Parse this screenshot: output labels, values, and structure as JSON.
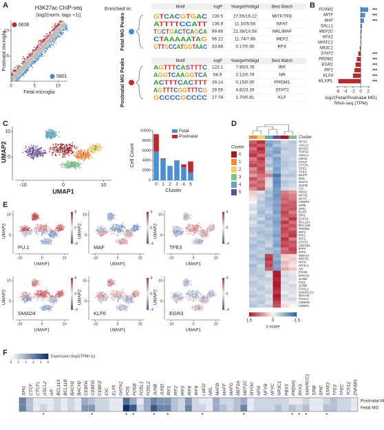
{
  "panel_a": {
    "label": "A",
    "title": "H3K27ac ChIP-seq",
    "subtitle": "(log2(norm. tags +1))",
    "x_label": "Fetal microglia",
    "y_label": "Postnatal microglia",
    "xlim": [
      0,
      12
    ],
    "ylim": [
      0,
      12
    ],
    "xticks": [
      0,
      5,
      10
    ],
    "yticks": [
      5,
      10
    ],
    "count_postnatal": 6636,
    "count_fetal": 5801,
    "color_postnatal": "#c0282c",
    "color_fetal": "#3b8fd0",
    "enriched_label": "Enriched in:",
    "table": {
      "header": [
        "Motif",
        "-logP",
        "%target/%bkgd",
        "Best Match"
      ],
      "groups": [
        {
          "name": "Fetal MG Peaks",
          "color": "#3b8fd0",
          "rows": [
            [
              "GTCACGTGAC",
              "239.5",
              "27.55/16.22",
              "MITF/TFE"
            ],
            [
              "ATTTTCCATT",
              "136.9",
              "11.10/5.56",
              "NFAT"
            ],
            [
              "TGCTGACTCAGCA",
              "99.66",
              "21.38/14.58",
              "NRL/MAF"
            ],
            [
              "CTAAAAATAG",
              "56.22",
              "11.74/7.86",
              "MEF2"
            ],
            [
              "GTTGCCATGGTAAC",
              "33.88",
              "0.17/0.00",
              "RFX"
            ]
          ]
        },
        {
          "name": "Postnatal MG Peaks",
          "color": "#c0282c",
          "rows": [
            [
              "AGTTTCASTTTC",
              "122.1",
              "7.90/3.78",
              "IRF"
            ],
            [
              "AGGTCAAGGTCA",
              "54.9",
              "2.12/0.79",
              "NR"
            ],
            [
              "ACTTTCACTTT",
              "39.14",
              "0.15/0.00",
              "PRDM1"
            ],
            [
              "AGTTTCGGTTTCG",
              "28.59",
              "4.82/3.16",
              "STAT2"
            ],
            [
              "GCCCCGCCCC",
              "27.78",
              "1.70/0.81",
              "KLF"
            ]
          ]
        }
      ]
    }
  },
  "panel_b": {
    "label": "B",
    "genes": [
      "FOXM1",
      "MITF",
      "MAF",
      "SALL1",
      "MEF2C",
      "RFX1",
      "NFATC1",
      "NR3C1",
      "STAT2",
      "PRDM1",
      "EGR1",
      "IRF1",
      "KLF4",
      "MLXIPL"
    ],
    "values": [
      1.9,
      1.1,
      0.8,
      0.3,
      0.2,
      0.15,
      0.1,
      -0.2,
      -0.6,
      -1.0,
      -1.3,
      -1.6,
      -2.0,
      -5.8
    ],
    "annotations": [
      "***",
      "***",
      "***",
      null,
      null,
      null,
      null,
      null,
      "***",
      "***",
      "***",
      "***",
      "***",
      "***"
    ],
    "xlim": [
      -6.5,
      2.5
    ],
    "xticks": [
      -6,
      -4,
      -2,
      0,
      2
    ],
    "x_label": "log2(Fetal/Postnatal MG)",
    "x_label2": "RNA-seq (TPM)",
    "color_positive": "#4a90d9",
    "color_negative": "#c0282c"
  },
  "panel_c": {
    "label": "C",
    "umap": {
      "x_label": "UMAP1",
      "y_label": "UMAP2",
      "xlim": [
        -12,
        12
      ],
      "ylim": [
        -8,
        12
      ],
      "xticks": [
        -10,
        0,
        10
      ],
      "yticks": [
        0,
        10
      ],
      "clusters": [
        "0",
        "1",
        "2",
        "3",
        "4",
        "5"
      ],
      "colors": [
        "#a11d21",
        "#f08a3c",
        "#f2d06b",
        "#7cc48a",
        "#5fa8c0",
        "#6a4c93"
      ]
    },
    "bar": {
      "x_label": "Cluster",
      "y_label": "Cell Count",
      "categories": [
        "0",
        "1",
        "2",
        "3",
        "4",
        "5"
      ],
      "ylim": [
        0,
        10000
      ],
      "yticks": [
        0,
        2000,
        4000,
        6000,
        8000,
        10000
      ],
      "series": [
        {
          "name": "Fetal",
          "color": "#4a90d9",
          "values": [
            5800,
            4200,
            2900,
            3900,
            2600,
            1600
          ]
        },
        {
          "name": "Postnatal",
          "color": "#c0282c",
          "values": [
            3500,
            200,
            0,
            100,
            600,
            2200
          ]
        }
      ]
    }
  },
  "panel_d": {
    "label": "D",
    "strip_label": "Cluster",
    "legend_title": "Cluster",
    "column_clusters": [
      1,
      2,
      4,
      5,
      0,
      3
    ],
    "genes": [
      "RFX3",
      "ASCL2",
      "MYOG",
      "TCF12",
      "ASCL1",
      "LMO2",
      "CTCF",
      "CTCFL",
      "TFE3",
      "TFEC",
      "MAFF",
      "NRL",
      "MAFG",
      "MAFB",
      "CIC",
      "PBX3",
      "NFYB",
      "NFYC",
      "CEBPZ",
      "SPIB",
      "SPIC",
      "ELF5",
      "SPI1",
      "GATA2",
      "BCL11A",
      "BCL11B",
      "PRDM1",
      "IRF3",
      "IRF2",
      "IRF1",
      "STAT2",
      "ZNF683",
      "IRF8",
      "IRF9",
      "MEF2A",
      "MEF2C",
      "NFIX",
      "NR3C1",
      "AR",
      "FOSB",
      "BACH1",
      "JUND",
      "FOS",
      "JUNB",
      "FOSL1",
      "SMARCC1",
      "BACH2",
      "FOSL2",
      "CEBPD",
      "CEBPA"
    ],
    "values": [
      [
        1.0,
        1.3,
        -0.8,
        -0.7,
        -0.3,
        -0.5
      ],
      [
        1.2,
        1.0,
        -0.9,
        -0.5,
        -0.4,
        -0.4
      ],
      [
        0.9,
        1.4,
        -0.6,
        -0.8,
        -0.5,
        -0.4
      ],
      [
        1.1,
        1.2,
        -0.7,
        -0.9,
        -0.3,
        -0.4
      ],
      [
        1.3,
        0.9,
        -0.8,
        -0.6,
        -0.4,
        -0.4
      ],
      [
        0.8,
        1.3,
        -0.5,
        -0.9,
        -0.4,
        -0.3
      ],
      [
        1.0,
        1.1,
        -0.4,
        -0.8,
        -0.5,
        -0.4
      ],
      [
        1.2,
        1.0,
        -0.6,
        -0.7,
        -0.5,
        -0.4
      ],
      [
        0.7,
        1.2,
        -0.3,
        -0.9,
        -0.4,
        -0.3
      ],
      [
        0.9,
        1.1,
        -0.5,
        -0.8,
        -0.3,
        -0.4
      ],
      [
        0.6,
        0.9,
        0.8,
        -1.3,
        -0.5,
        -0.5
      ],
      [
        1.1,
        0.8,
        -0.3,
        -1.0,
        -0.3,
        -0.3
      ],
      [
        0.8,
        1.0,
        0.2,
        -1.1,
        -0.5,
        -0.4
      ],
      [
        1.0,
        0.9,
        -0.2,
        -1.0,
        -0.4,
        -0.3
      ],
      [
        0.7,
        1.1,
        -0.4,
        -0.9,
        -0.3,
        -0.2
      ],
      [
        0.3,
        -0.2,
        -0.6,
        -0.9,
        0.8,
        0.6
      ],
      [
        0.2,
        -0.4,
        -0.5,
        -1.0,
        0.9,
        0.8
      ],
      [
        0.1,
        -0.3,
        -0.7,
        -0.9,
        1.0,
        0.8
      ],
      [
        0.0,
        -0.5,
        -0.6,
        -0.8,
        0.9,
        1.0
      ],
      [
        -0.2,
        -0.4,
        -0.6,
        -0.9,
        1.1,
        1.0
      ],
      [
        -0.3,
        -0.5,
        -0.5,
        -0.8,
        1.0,
        1.1
      ],
      [
        -0.1,
        -0.6,
        -0.4,
        -0.9,
        1.2,
        0.8
      ],
      [
        -0.3,
        -0.5,
        -0.6,
        -0.7,
        1.1,
        1.0
      ],
      [
        -0.4,
        -0.3,
        -0.7,
        -0.8,
        0.9,
        1.3
      ],
      [
        -0.2,
        -0.6,
        -0.5,
        -0.9,
        1.3,
        0.9
      ],
      [
        -0.3,
        -0.4,
        -0.6,
        -0.8,
        1.0,
        1.1
      ],
      [
        -0.5,
        -0.5,
        -0.4,
        -0.7,
        1.2,
        0.9
      ],
      [
        -0.4,
        -0.6,
        -0.5,
        -0.8,
        1.1,
        1.2
      ],
      [
        -0.3,
        -0.5,
        -0.6,
        -0.9,
        1.0,
        1.3
      ],
      [
        -0.5,
        -0.4,
        -0.5,
        -0.7,
        1.3,
        0.8
      ],
      [
        -0.4,
        -0.6,
        -0.4,
        -0.8,
        1.1,
        1.1
      ],
      [
        -0.6,
        -0.5,
        -0.3,
        -0.9,
        1.2,
        1.0
      ],
      [
        -0.5,
        -0.4,
        -0.6,
        -0.6,
        0.9,
        1.2
      ],
      [
        -0.4,
        -0.5,
        -0.5,
        -0.7,
        1.0,
        1.1
      ],
      [
        -0.6,
        -0.4,
        1.2,
        -0.8,
        0.3,
        0.2
      ],
      [
        -0.5,
        -0.6,
        1.3,
        -0.7,
        0.2,
        0.3
      ],
      [
        -0.4,
        -0.5,
        1.1,
        -0.9,
        0.4,
        0.2
      ],
      [
        -0.6,
        -0.3,
        1.2,
        -0.8,
        0.3,
        0.1
      ],
      [
        -0.5,
        -0.4,
        1.0,
        -0.9,
        0.5,
        0.3
      ],
      [
        -0.5,
        -0.4,
        -0.3,
        1.5,
        -0.2,
        -0.1
      ],
      [
        -0.4,
        -0.5,
        -0.2,
        1.5,
        -0.3,
        -0.2
      ],
      [
        -0.3,
        -0.4,
        -0.4,
        1.4,
        -0.2,
        -0.2
      ],
      [
        -0.5,
        -0.3,
        -0.3,
        1.5,
        -0.3,
        -0.1
      ],
      [
        -0.4,
        -0.4,
        -0.2,
        1.5,
        -0.2,
        -0.3
      ],
      [
        -0.3,
        -0.5,
        -0.3,
        1.4,
        -0.2,
        -0.2
      ],
      [
        -0.4,
        -0.3,
        -0.4,
        1.3,
        -0.1,
        -0.2
      ],
      [
        -0.5,
        -0.4,
        -0.2,
        1.5,
        -0.3,
        -0.1
      ],
      [
        -0.3,
        -0.4,
        -0.3,
        1.4,
        -0.2,
        -0.3
      ],
      [
        -0.4,
        -0.5,
        -0.2,
        1.2,
        0.1,
        -0.1
      ],
      [
        -0.5,
        -0.3,
        -0.4,
        1.1,
        0.2,
        0.0
      ]
    ],
    "color_high": "#b2182b",
    "color_low": "#2166ac",
    "colorbar_ticks": [
      1.5,
      0,
      -1.5
    ],
    "colorbar_label": "z-score"
  },
  "panel_e": {
    "label": "E",
    "x_label": "UMAP1",
    "y_label": "UMAP2",
    "xticks": [
      -10,
      0,
      10
    ],
    "yticks": [
      0,
      10
    ],
    "plots": [
      {
        "name": "PU.1",
        "colorbar": [
          8,
          0,
          -8
        ]
      },
      {
        "name": "MAF",
        "colorbar": [
          4,
          0,
          -4
        ]
      },
      {
        "name": "TFE3",
        "colorbar": [
          4,
          0,
          -4
        ]
      },
      {
        "name": "SMAD4",
        "colorbar": [
          4,
          0,
          -4
        ]
      },
      {
        "name": "KLF6",
        "colorbar": [
          4,
          0,
          -4
        ]
      },
      {
        "name": "EGR3",
        "colorbar": [
          4,
          0,
          -4
        ]
      }
    ]
  },
  "panel_f": {
    "label": "F",
    "legend_label": "Expression (log2(TPM+1))",
    "legend_ticks": [
      0,
      1,
      2,
      3,
      4,
      5
    ],
    "genes": [
      "SPI1",
      "CTCF",
      "CTCFL",
      "ASCL2",
      "AR",
      "BCL11A",
      "BCL11B",
      "BACH1",
      "BACH2",
      "CEBPA",
      "CEBPD",
      "CEBPZ",
      "CIC",
      "ELF5",
      "GATA2",
      "FOS",
      "FOSB",
      "FOSL1",
      "FOSL2",
      "JUNB",
      "JUND",
      "IRF1",
      "IRF2",
      "IRF3",
      "IRF8",
      "IRF9",
      "LMO2",
      "NRL",
      "MAFB",
      "MAFF",
      "MAFG",
      "MEF2A",
      "MEF2C",
      "MYOG",
      "NFIX",
      "NFYB",
      "NFYC",
      "NR3C1",
      "PBX3",
      "PRDM1",
      "RFX3",
      "SMARCC1",
      "SPIB",
      "SPIC",
      "STAT2",
      "TFE3",
      "TFEC",
      "TCF12",
      "ZNF683"
    ],
    "rows": [
      "Postnatal MG",
      "Fetal MG"
    ],
    "values": [
      [
        3,
        1.5,
        0.5,
        0.5,
        0.5,
        1,
        0.5,
        1,
        0.5,
        2,
        1.5,
        1,
        1,
        0.5,
        0.5,
        3.5,
        2,
        0.5,
        2,
        3,
        2.5,
        2.5,
        1.5,
        1,
        2.5,
        1,
        0.5,
        0.5,
        2,
        1,
        1,
        1.5,
        2,
        0.5,
        1,
        1,
        1,
        1,
        1,
        0.5,
        0.5,
        1,
        0.5,
        0.5,
        1,
        1.5,
        1,
        1,
        0.5
      ],
      [
        3,
        1.5,
        0.5,
        1,
        0.5,
        1,
        0.5,
        1,
        0.5,
        2.5,
        2.5,
        1,
        1,
        0.5,
        0.5,
        5,
        4,
        1,
        2,
        4,
        3,
        3,
        1.5,
        1,
        3,
        1,
        1,
        0.5,
        2,
        1.5,
        1,
        1.5,
        3,
        0.5,
        1,
        1,
        1,
        1.5,
        1,
        1.5,
        1,
        1.5,
        0.5,
        0.5,
        1.5,
        1.5,
        1,
        1,
        0.5
      ]
    ],
    "stars": [
      null,
      null,
      null,
      "*",
      null,
      null,
      null,
      null,
      null,
      null,
      "*",
      null,
      null,
      null,
      null,
      "*",
      "*",
      null,
      null,
      "*",
      null,
      "*",
      null,
      null,
      null,
      null,
      "*",
      null,
      null,
      null,
      null,
      null,
      "*",
      null,
      null,
      null,
      null,
      null,
      null,
      "*",
      "*",
      "*",
      null,
      null,
      "*",
      null,
      null,
      null,
      null
    ],
    "color_high": "#08306b"
  }
}
